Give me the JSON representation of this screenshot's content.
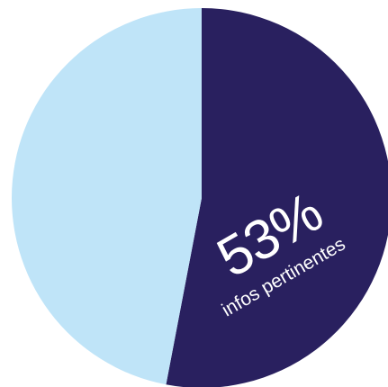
{
  "chart_data": {
    "type": "pie",
    "slices": [
      {
        "value": 53,
        "color": "#29205f"
      },
      {
        "value": 47,
        "color": "#bfe4f8"
      }
    ],
    "annotation": {
      "value_label": "53%",
      "caption": "infos pertinentes",
      "text_color": "#ffffff"
    }
  }
}
